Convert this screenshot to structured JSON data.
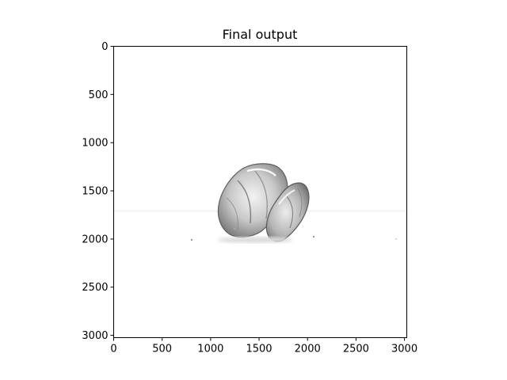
{
  "chart_data": {
    "type": "image",
    "title": "Final output",
    "xlabel": "",
    "ylabel": "",
    "xlim": [
      0,
      3024
    ],
    "ylim": [
      3024,
      0
    ],
    "x_ticks": [
      0,
      500,
      1000,
      1500,
      2000,
      2500,
      3000
    ],
    "y_ticks": [
      0,
      500,
      1000,
      1500,
      2000,
      2500,
      3000
    ],
    "grid": false,
    "colormap": "gray",
    "image_content": "grayscale high-key image of a crumpled translucent object near center",
    "object_extent": {
      "x": [
        1080,
        2030
      ],
      "y": [
        1230,
        2060
      ]
    }
  }
}
